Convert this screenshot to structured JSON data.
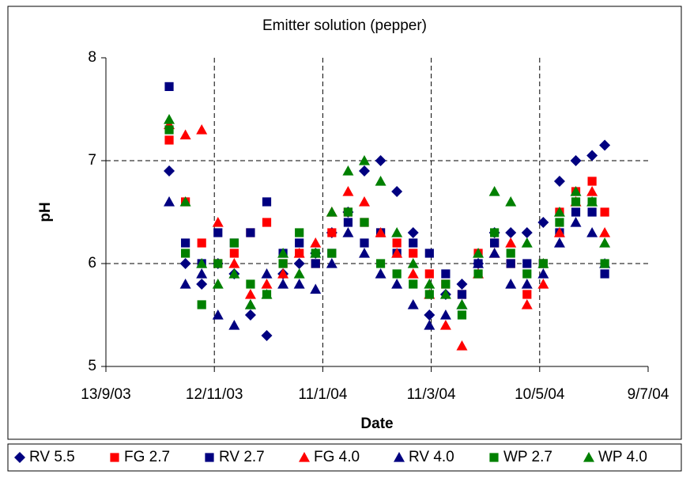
{
  "chart_data": {
    "type": "scatter",
    "title": "Emitter solution (pepper)",
    "xlabel": "Date",
    "ylabel": "pH",
    "xlim": [
      "2003-09-13",
      "2004-07-09"
    ],
    "xticks": [
      {
        "value": "2003-09-13",
        "label": "13/9/03"
      },
      {
        "value": "2003-11-12",
        "label": "12/11/03"
      },
      {
        "value": "2004-01-11",
        "label": "11/1/04"
      },
      {
        "value": "2004-03-11",
        "label": "11/3/04"
      },
      {
        "value": "2004-05-10",
        "label": "10/5/04"
      },
      {
        "value": "2004-07-09",
        "label": "9/7/04"
      }
    ],
    "ylim": [
      5,
      8
    ],
    "yticks": [
      5,
      6,
      7,
      8
    ],
    "grid": true,
    "legend": "bottom",
    "x": [
      "2003-10-18",
      "2003-10-27",
      "2003-11-05",
      "2003-11-14",
      "2003-11-23",
      "2003-12-02",
      "2003-12-11",
      "2003-12-20",
      "2003-12-29",
      "2004-01-07",
      "2004-01-16",
      "2004-01-25",
      "2004-02-03",
      "2004-02-12",
      "2004-02-21",
      "2004-03-01",
      "2004-03-10",
      "2004-03-19",
      "2004-03-28",
      "2004-04-06",
      "2004-04-15",
      "2004-04-24",
      "2004-05-03",
      "2004-05-12",
      "2004-05-21",
      "2004-05-30",
      "2004-06-08",
      "2004-06-15"
    ],
    "series": [
      {
        "name": "RV 5.5",
        "color": "#000080",
        "marker": "diamond",
        "values": [
          6.9,
          6.0,
          5.8,
          6.0,
          5.9,
          5.5,
          5.3,
          5.9,
          6.0,
          6.1,
          6.3,
          6.5,
          6.9,
          7.0,
          6.7,
          6.3,
          5.5,
          5.7,
          5.8,
          6.0,
          6.3,
          6.3,
          6.3,
          6.4,
          6.8,
          7.0,
          7.05,
          7.15
        ]
      },
      {
        "name": "FG 2.7",
        "color": "#ff0000",
        "marker": "square",
        "values": [
          7.2,
          6.6,
          6.2,
          6.0,
          6.1,
          6.3,
          6.4,
          6.0,
          6.1,
          6.0,
          6.3,
          6.5,
          6.4,
          6.3,
          6.2,
          6.1,
          5.9,
          5.8,
          5.7,
          6.1,
          6.2,
          6.0,
          5.7,
          6.0,
          6.5,
          6.7,
          6.8,
          6.5
        ]
      },
      {
        "name": "RV 2.7",
        "color": "#000080",
        "marker": "square",
        "values": [
          7.72,
          6.2,
          6.0,
          6.3,
          6.2,
          6.3,
          6.6,
          6.1,
          6.2,
          6.0,
          6.1,
          6.4,
          6.2,
          6.3,
          6.1,
          6.2,
          6.1,
          5.9,
          5.7,
          6.0,
          6.2,
          6.0,
          6.0,
          6.0,
          6.3,
          6.5,
          6.5,
          5.9
        ]
      },
      {
        "name": "FG 4.0",
        "color": "#ff0000",
        "marker": "triangle",
        "values": [
          7.35,
          7.25,
          7.3,
          6.4,
          6.0,
          5.7,
          5.8,
          5.9,
          6.1,
          6.2,
          6.5,
          6.7,
          6.6,
          6.3,
          6.1,
          5.9,
          5.7,
          5.4,
          5.2,
          5.9,
          6.1,
          6.2,
          5.6,
          5.8,
          6.3,
          6.6,
          6.7,
          6.3
        ]
      },
      {
        "name": "RV 4.0",
        "color": "#000080",
        "marker": "triangle",
        "values": [
          6.6,
          5.8,
          5.9,
          5.5,
          5.4,
          5.6,
          5.9,
          5.8,
          5.8,
          5.75,
          6.0,
          6.3,
          6.1,
          5.9,
          5.8,
          5.6,
          5.4,
          5.5,
          5.6,
          6.0,
          6.1,
          5.8,
          5.8,
          5.9,
          6.2,
          6.4,
          6.3,
          6.0
        ]
      },
      {
        "name": "WP 2.7",
        "color": "#008000",
        "marker": "square",
        "values": [
          7.3,
          6.1,
          5.6,
          6.0,
          6.2,
          5.8,
          5.7,
          6.0,
          6.3,
          6.1,
          6.1,
          6.5,
          6.4,
          6.0,
          5.9,
          5.8,
          5.7,
          5.8,
          5.5,
          5.9,
          6.3,
          6.1,
          5.9,
          6.0,
          6.4,
          6.6,
          6.6,
          6.0
        ]
      },
      {
        "name": "WP 4.0",
        "color": "#008000",
        "marker": "triangle",
        "values": [
          7.4,
          6.6,
          6.0,
          5.8,
          5.9,
          5.6,
          5.7,
          6.1,
          5.9,
          6.1,
          6.5,
          6.9,
          7.0,
          6.8,
          6.3,
          6.0,
          5.8,
          5.7,
          5.6,
          6.1,
          6.7,
          6.6,
          6.2,
          6.0,
          6.5,
          6.7,
          6.6,
          6.2
        ]
      }
    ]
  }
}
